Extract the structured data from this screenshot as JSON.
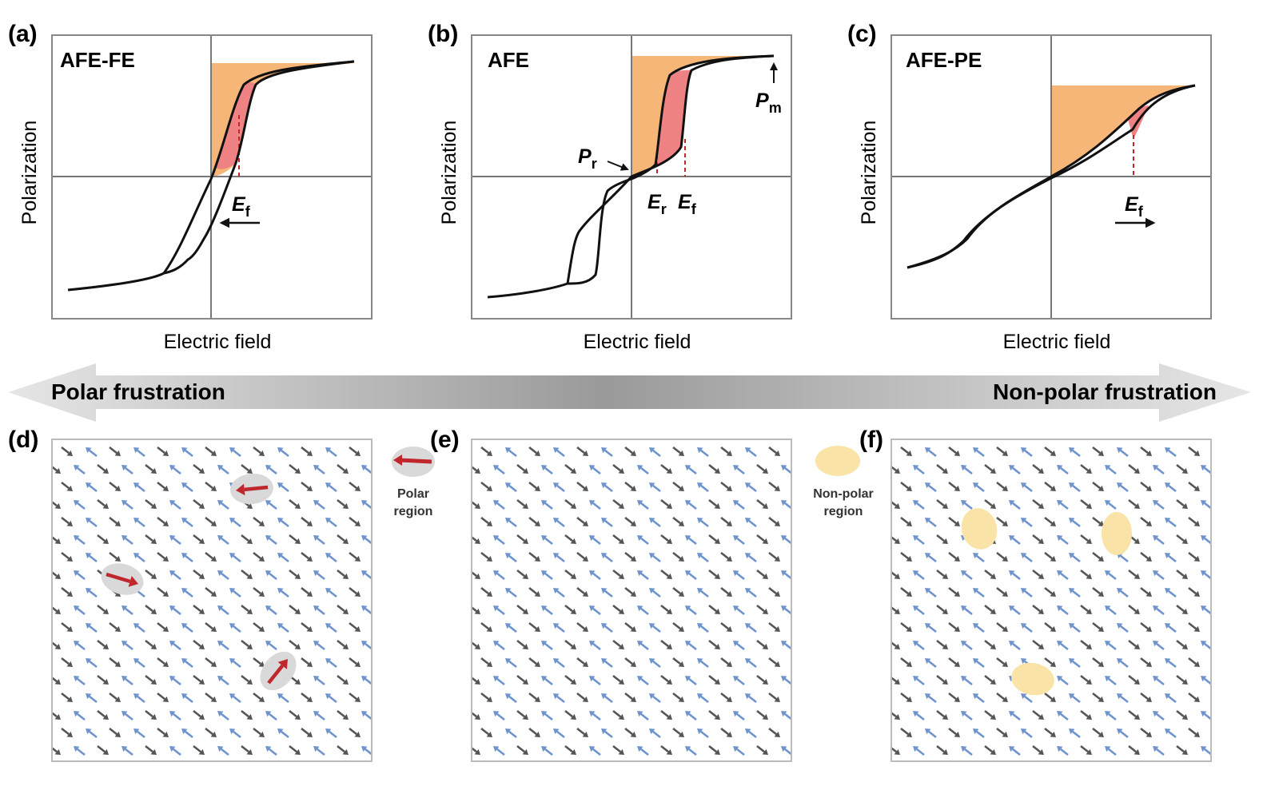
{
  "panels": [
    {
      "label": "(a)",
      "title": "AFE-FE",
      "y_label": "Polarization",
      "x_label": "Electric field",
      "annotations": [
        {
          "main": "E",
          "sub": "f"
        }
      ]
    },
    {
      "label": "(b)",
      "title": "AFE",
      "y_label": "Polarization",
      "x_label": "Electric field",
      "annotations": [
        {
          "main": "P",
          "sub": "r"
        },
        {
          "main": "E",
          "sub": "r"
        },
        {
          "main": "E",
          "sub": "f"
        },
        {
          "main": "P",
          "sub": "m"
        }
      ]
    },
    {
      "label": "(c)",
      "title": "AFE-PE",
      "y_label": "Polarization",
      "x_label": "Electric field",
      "annotations": [
        {
          "main": "E",
          "sub": "f"
        }
      ]
    }
  ],
  "arrow": {
    "left": "Polar frustration",
    "right": "Non-polar frustration"
  },
  "lattices": [
    {
      "label": "(d)"
    },
    {
      "label": "(e)"
    },
    {
      "label": "(f)"
    }
  ],
  "legends": [
    {
      "lines": [
        "Polar",
        "region"
      ]
    },
    {
      "lines": [
        "Non-polar",
        "region"
      ]
    }
  ]
}
